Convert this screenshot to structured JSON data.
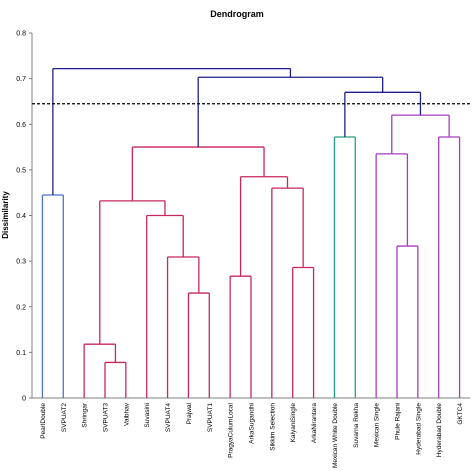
{
  "chart_data": {
    "type": "dendrogram",
    "title": "Dendrogram",
    "ylabel": "Dissimilarity",
    "ylim": [
      0,
      0.8
    ],
    "yticks": [
      "0",
      "0.1",
      "0.2",
      "0.3",
      "0.4",
      "0.5",
      "0.6",
      "0.7",
      "0.8"
    ],
    "cut_line": 0.645,
    "leaves": [
      "PearlDouble",
      "SVPUAT2",
      "Shringar",
      "SVPUAT3",
      "Vaibhav",
      "Suvasini",
      "SVPUAT4",
      "Prajwal",
      "SVPUAT1",
      "PragyaCulumLocal",
      "ArkaSugandhi",
      "Sikkim Selection",
      "KalyaniSingle",
      "ArkaNirantara",
      "Mexican White Double",
      "Suvarna Rekha",
      "Mexican Single",
      "Phule Rajani",
      "Hyderabad Single",
      "Hyderabad Double",
      "GKTC4"
    ],
    "merges": [
      {
        "left": "SVPUAT3",
        "right": "Vaibhav",
        "height": 0.078
      },
      {
        "left": "Shringar",
        "right": "SVPUAT3+Vaibhav",
        "height": 0.118
      },
      {
        "left": "Prajwal",
        "right": "SVPUAT1",
        "height": 0.23
      },
      {
        "left": "PragyaCulumLocal",
        "right": "ArkaSugandhi",
        "height": 0.267
      },
      {
        "left": "KalyaniSingle",
        "right": "ArkaNirantara",
        "height": 0.286
      },
      {
        "left": "SVPUAT4",
        "right": "Prajwal+SVPUAT1",
        "height": 0.309
      },
      {
        "left": "Phule Rajani",
        "right": "Hyderabad Single",
        "height": 0.333
      },
      {
        "left": "Suvasini",
        "right": "SVPUAT4 group",
        "height": 0.4
      },
      {
        "left": "Shringar group",
        "right": "Suvasini group",
        "height": 0.432
      },
      {
        "left": "PearlDouble",
        "right": "SVPUAT2",
        "height": 0.445
      },
      {
        "left": "Sikkim Selection",
        "right": "KalyaniSingle+ArkaNirantara",
        "height": 0.46
      },
      {
        "left": "PragyaCulumLocal group",
        "right": "Sikkim Selection group",
        "height": 0.485
      },
      {
        "left": "Mexican Single",
        "right": "Phule Rajani group",
        "height": 0.535
      },
      {
        "left": "Shringar cluster",
        "right": "PragyaCulumLocal cluster",
        "height": 0.55
      },
      {
        "left": "Hyderabad Double",
        "right": "GKTC4",
        "height": 0.572
      },
      {
        "left": "Mexican White Double",
        "right": "Suvarna Rekha",
        "height": 0.572
      },
      {
        "left": "Mexican Single group",
        "right": "Hyderabad Double+GKTC4",
        "height": 0.62
      },
      {
        "left": "Mexican White Double+Suvarna Rekha",
        "right": "Mexican Single cluster",
        "height": 0.67
      },
      {
        "left": "Red cluster",
        "right": "Right clusters",
        "height": 0.703
      },
      {
        "left": "PearlDouble+SVPUAT2",
        "right": "All others",
        "height": 0.722
      }
    ],
    "colors": {
      "blue_cluster": "#4f74c9",
      "red_cluster": "#c7275a",
      "green_cluster": "#25a181",
      "purple_cluster": "#a73bc0",
      "top_links": "#1f1f8c",
      "cut_line": "#000000"
    }
  }
}
